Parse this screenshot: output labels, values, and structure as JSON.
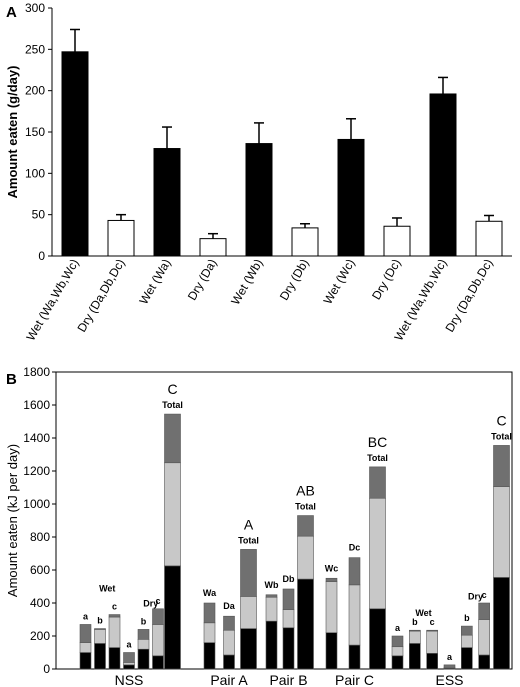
{
  "panels": {
    "a": {
      "label": "A"
    },
    "b": {
      "label": "B"
    }
  },
  "colors": {
    "black": "#000000",
    "white": "#ffffff",
    "light_gray": "#c8c8c8",
    "dark_gray": "#707070",
    "border": "#000000"
  },
  "chart_data": [
    {
      "type": "bar",
      "panel": "A",
      "ylabel": "Amount eaten (g/day)",
      "xlabel": "",
      "ylim": [
        0,
        300
      ],
      "yticks": [
        0,
        50,
        100,
        150,
        200,
        250,
        300
      ],
      "grid": false,
      "bars": [
        {
          "category": "Wet (Wa,Wb,Wc)",
          "value": 247,
          "error": 27,
          "fill": "black",
          "group": 0
        },
        {
          "category": "Dry (Da,Db,Dc)",
          "value": 43,
          "error": 7,
          "fill": "white",
          "group": 0
        },
        {
          "category": "Wet (Wa)",
          "value": 130,
          "error": 26,
          "fill": "black",
          "group": 1
        },
        {
          "category": "Dry (Da)",
          "value": 21,
          "error": 6,
          "fill": "white",
          "group": 1
        },
        {
          "category": "Wet (Wb)",
          "value": 136,
          "error": 25,
          "fill": "black",
          "group": 2
        },
        {
          "category": "Dry (Db)",
          "value": 34,
          "error": 5,
          "fill": "white",
          "group": 2
        },
        {
          "category": "Wet (Wc)",
          "value": 141,
          "error": 25,
          "fill": "black",
          "group": 3
        },
        {
          "category": "Dry (Dc)",
          "value": 36,
          "error": 10,
          "fill": "white",
          "group": 3
        },
        {
          "category": "Wet (Wa,Wb,Wc)",
          "value": 196,
          "error": 20,
          "fill": "black",
          "group": 4
        },
        {
          "category": "Dry (Da,Db,Dc)",
          "value": 42,
          "error": 7,
          "fill": "white",
          "group": 4
        }
      ]
    },
    {
      "type": "bar",
      "stacked": true,
      "panel": "B",
      "ylabel": "Amount eaten (kJ per day)",
      "xlabel": "",
      "ylim": [
        0,
        1800
      ],
      "yticks": [
        0,
        200,
        400,
        600,
        800,
        1000,
        1200,
        1400,
        1600,
        1800
      ],
      "grid": false,
      "segment_colors": [
        "black",
        "light_gray",
        "white",
        "dark_gray"
      ],
      "groups": [
        {
          "label": "NSS",
          "annotations": [
            {
              "text": "Wet",
              "bar": 1.5,
              "y": 470
            },
            {
              "text": "Dry",
              "bar": 4.5,
              "y": 380
            }
          ]
        },
        {
          "label": "Pair A",
          "annotations": []
        },
        {
          "label": "Pair B",
          "annotations": []
        },
        {
          "label": "Pair C",
          "annotations": []
        },
        {
          "label": "ESS",
          "annotations": [
            {
              "text": "Wet",
              "bar": 1.5,
              "y": 320
            },
            {
              "text": "Dry",
              "bar": 4.5,
              "y": 420
            }
          ]
        }
      ],
      "bars": [
        {
          "group": 0,
          "total": 270,
          "segments": [
            100,
            60,
            0,
            110
          ],
          "letter": "a"
        },
        {
          "group": 0,
          "total": 245,
          "segments": [
            155,
            85,
            0,
            5
          ],
          "letter": "b"
        },
        {
          "group": 0,
          "total": 330,
          "segments": [
            130,
            185,
            0,
            15
          ],
          "letter": "c"
        },
        {
          "group": 0,
          "total": 100,
          "segments": [
            25,
            15,
            0,
            60
          ],
          "letter": "a"
        },
        {
          "group": 0,
          "total": 240,
          "segments": [
            120,
            60,
            0,
            60
          ],
          "letter": "b"
        },
        {
          "group": 0,
          "total": 365,
          "segments": [
            80,
            190,
            0,
            95
          ],
          "letter": "c"
        },
        {
          "group": 0,
          "total": 1545,
          "segments": [
            625,
            625,
            0,
            295
          ],
          "letter": "C",
          "top_label": "Total",
          "big_letter": true
        },
        {
          "group": 1,
          "total": 400,
          "segments": [
            160,
            120,
            0,
            120
          ],
          "top_label": "Wa"
        },
        {
          "group": 1,
          "total": 320,
          "segments": [
            85,
            150,
            0,
            85
          ],
          "top_label": "Da"
        },
        {
          "group": 1,
          "total": 725,
          "segments": [
            245,
            195,
            0,
            285
          ],
          "letter": "A",
          "top_label": "Total",
          "big_letter": true
        },
        {
          "group": 2,
          "total": 450,
          "segments": [
            290,
            145,
            0,
            15
          ],
          "top_label": "Wb"
        },
        {
          "group": 2,
          "total": 485,
          "segments": [
            250,
            110,
            0,
            125
          ],
          "top_label": "Db"
        },
        {
          "group": 2,
          "total": 930,
          "segments": [
            545,
            260,
            0,
            125
          ],
          "letter": "AB",
          "top_label": "Total",
          "big_letter": true
        },
        {
          "group": 3,
          "total": 550,
          "segments": [
            220,
            310,
            0,
            20
          ],
          "top_label": "Wc"
        },
        {
          "group": 3,
          "total": 675,
          "segments": [
            145,
            365,
            0,
            165
          ],
          "top_label": "Dc"
        },
        {
          "group": 3,
          "total": 1225,
          "segments": [
            365,
            670,
            0,
            190
          ],
          "letter": "BC",
          "top_label": "Total",
          "big_letter": true
        },
        {
          "group": 4,
          "total": 200,
          "segments": [
            80,
            55,
            0,
            65
          ],
          "letter": "a"
        },
        {
          "group": 4,
          "total": 235,
          "segments": [
            155,
            75,
            0,
            5
          ],
          "letter": "b"
        },
        {
          "group": 4,
          "total": 235,
          "segments": [
            95,
            135,
            0,
            5
          ],
          "letter": "c"
        },
        {
          "group": 4,
          "total": 25,
          "segments": [
            5,
            5,
            0,
            15
          ],
          "letter": "a"
        },
        {
          "group": 4,
          "total": 260,
          "segments": [
            130,
            75,
            0,
            55
          ],
          "letter": "b"
        },
        {
          "group": 4,
          "total": 400,
          "segments": [
            85,
            215,
            0,
            100
          ],
          "letter": "c"
        },
        {
          "group": 4,
          "total": 1355,
          "segments": [
            555,
            550,
            0,
            250
          ],
          "letter": "C",
          "top_label": "Total",
          "big_letter": true
        }
      ]
    }
  ]
}
